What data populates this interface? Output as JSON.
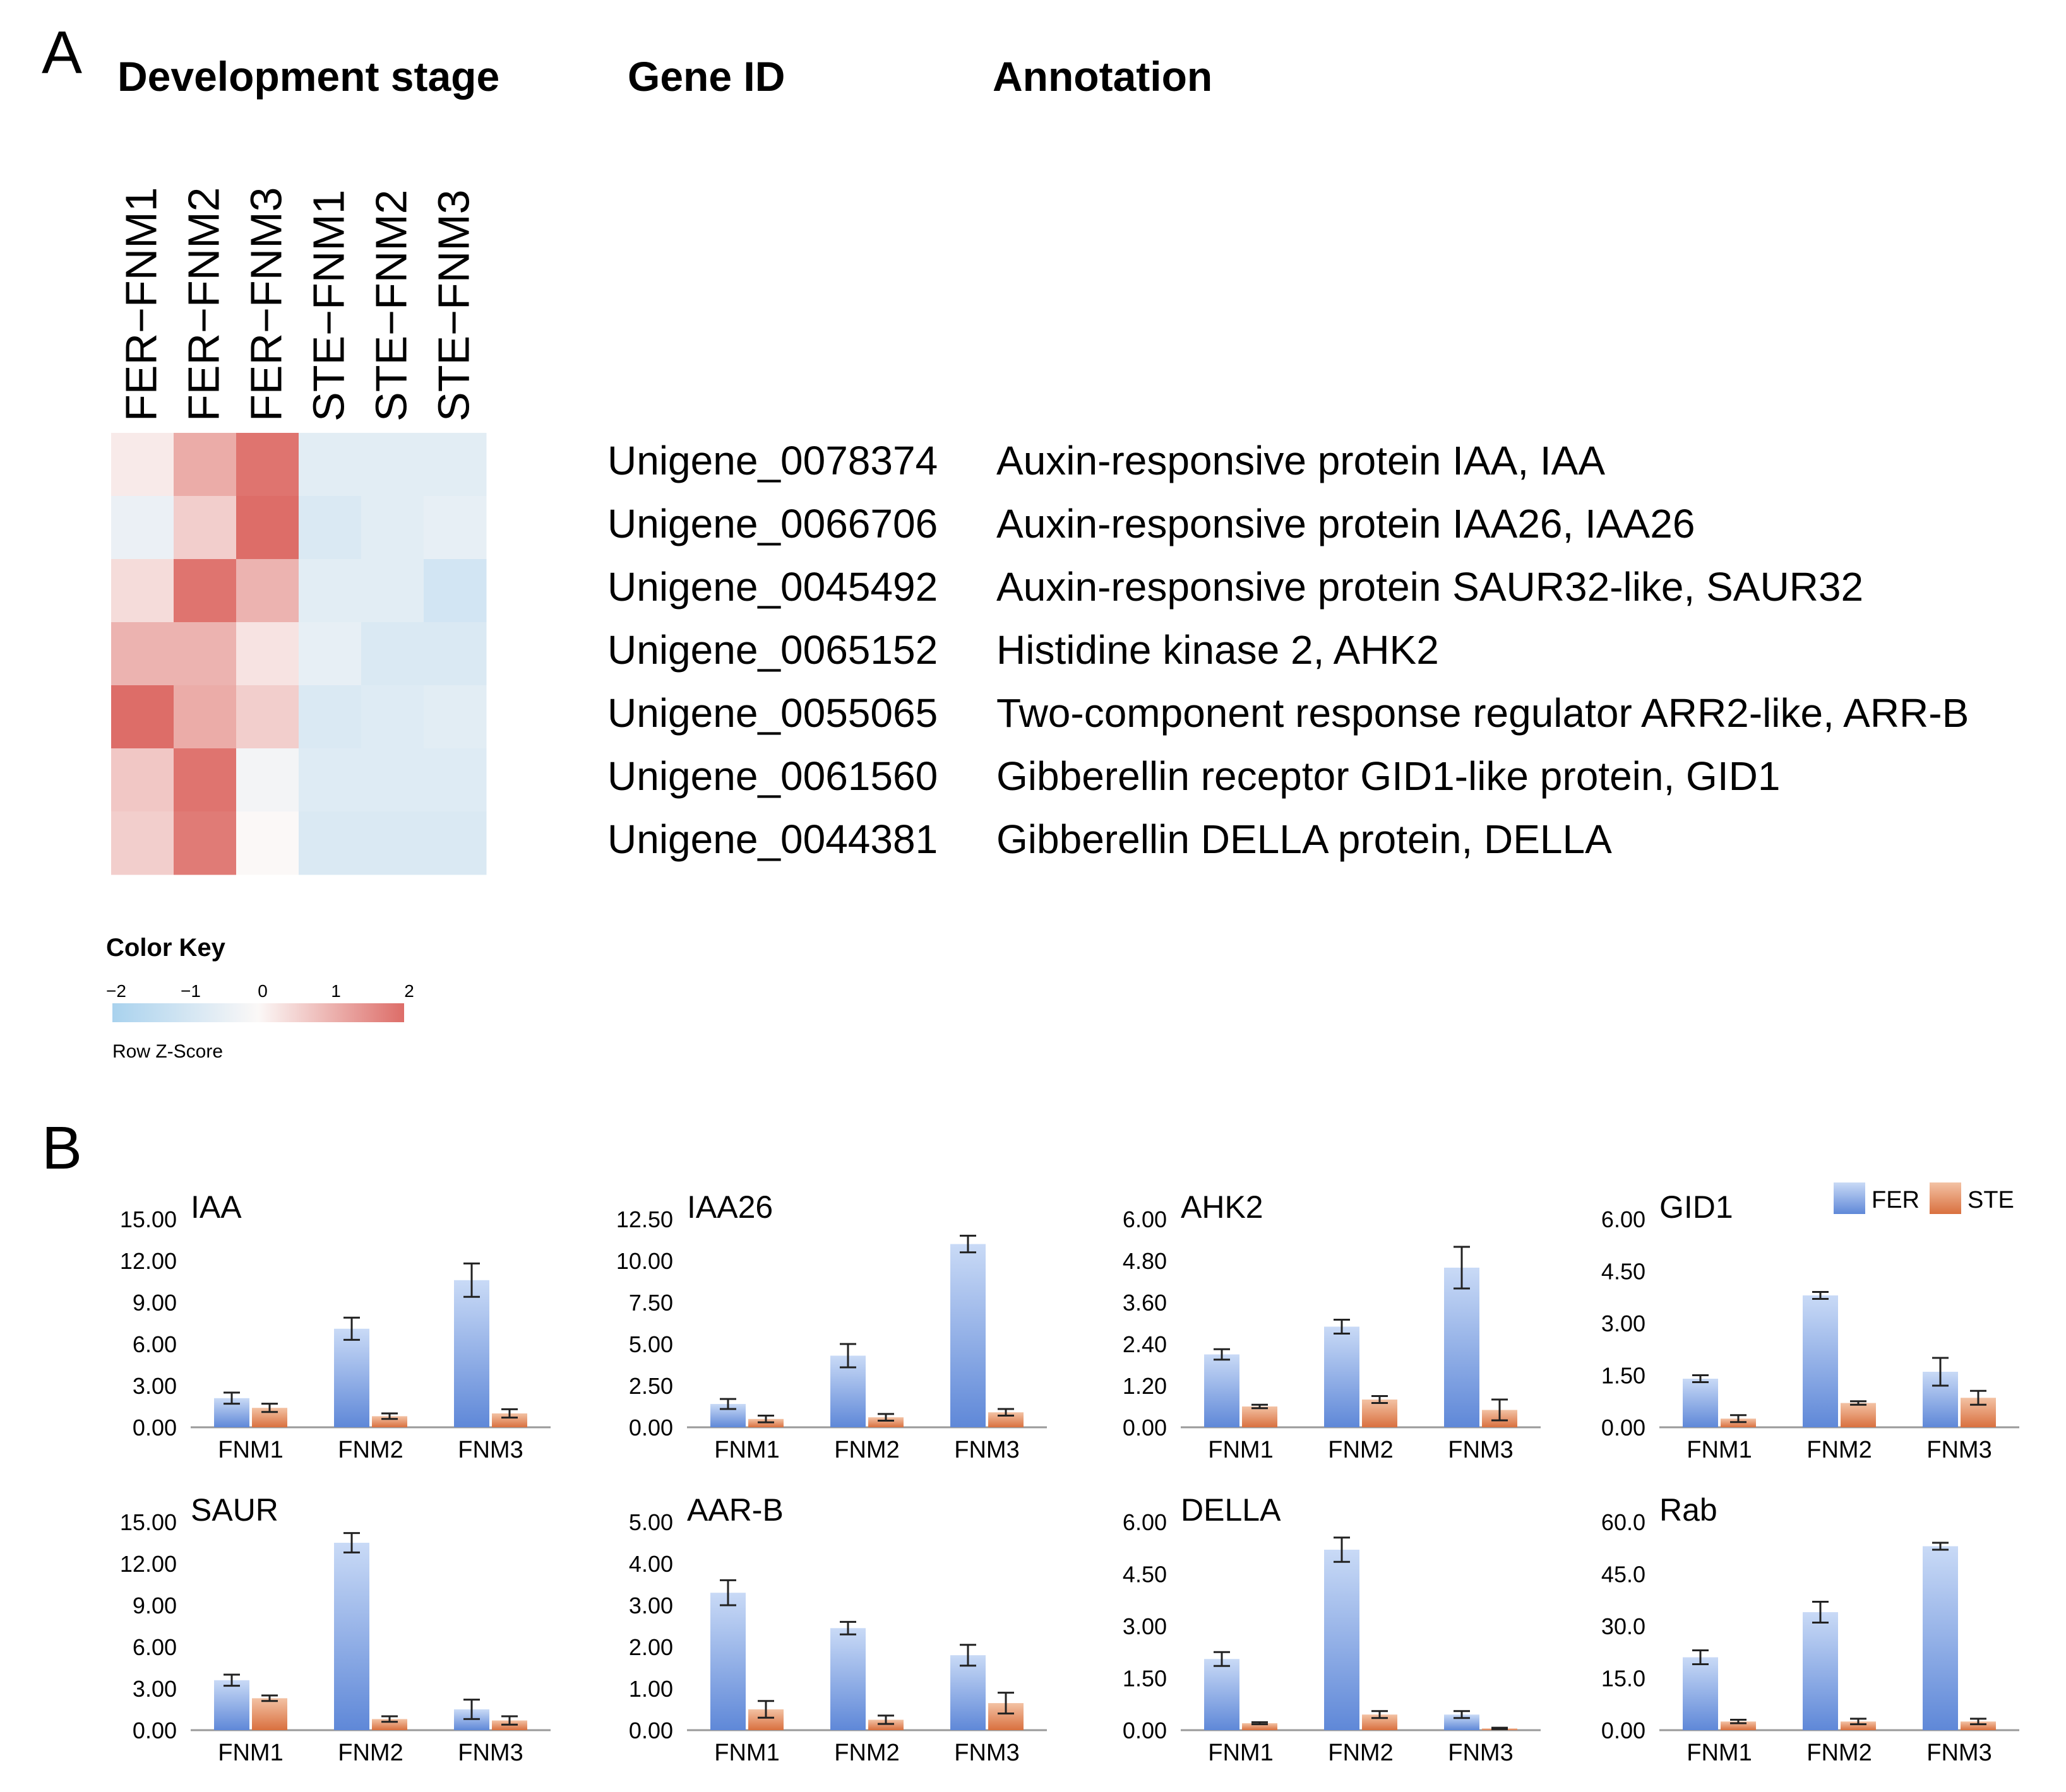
{
  "panel_a": {
    "letter": "A",
    "headers": {
      "stage": "Development stage",
      "gene_id": "Gene ID",
      "annotation": "Annotation"
    },
    "color_key": {
      "title": "Color Key",
      "subtitle": "Row Z-Score",
      "ticks": [
        "−2",
        "−1",
        "0",
        "1",
        "2"
      ],
      "low_color": "#a9d2ee",
      "mid_color": "#fbf8f7",
      "high_color": "#dd6d68"
    },
    "genes": [
      {
        "id": "Unigene_0078374",
        "annotation": "Auxin-responsive protein IAA, IAA"
      },
      {
        "id": "Unigene_0066706",
        "annotation": "Auxin-responsive protein IAA26, IAA26"
      },
      {
        "id": "Unigene_0045492",
        "annotation": "Auxin-responsive protein SAUR32-like, SAUR32"
      },
      {
        "id": "Unigene_0065152",
        "annotation": "Histidine kinase 2, AHK2"
      },
      {
        "id": "Unigene_0055065",
        "annotation": "Two-component response regulator ARR2-like, ARR-B"
      },
      {
        "id": "Unigene_0061560",
        "annotation": "Gibberellin receptor GID1-like protein, GID1"
      },
      {
        "id": "Unigene_0044381",
        "annotation": "Gibberellin DELLA protein, DELLA"
      }
    ]
  },
  "panel_b": {
    "letter": "B",
    "colors": {
      "FER": "#6d95e0",
      "STE": "#e08456"
    }
  },
  "chart_data": [
    {
      "type": "heatmap",
      "title": "",
      "columns": [
        "FER−FNM1",
        "FER−FNM2",
        "FER−FNM3",
        "STE−FNM1",
        "STE−FNM2",
        "STE−FNM3"
      ],
      "rows": [
        "Unigene_0078374",
        "Unigene_0066706",
        "Unigene_0045492",
        "Unigene_0065152",
        "Unigene_0055065",
        "Unigene_0061560",
        "Unigene_0044381"
      ],
      "values": [
        [
          0.2,
          1.1,
          1.9,
          -0.6,
          -0.6,
          -0.6
        ],
        [
          -0.4,
          0.6,
          2.0,
          -0.8,
          -0.6,
          -0.5
        ],
        [
          0.4,
          1.9,
          1.0,
          -0.6,
          -0.6,
          -1.0
        ],
        [
          1.0,
          1.0,
          0.3,
          -0.5,
          -0.8,
          -0.8
        ],
        [
          2.0,
          1.1,
          0.6,
          -0.8,
          -0.7,
          -0.6
        ],
        [
          0.7,
          1.9,
          -0.2,
          -0.7,
          -0.7,
          -0.7
        ],
        [
          0.6,
          1.8,
          0.0,
          -0.8,
          -0.8,
          -0.8
        ]
      ],
      "color_range": [
        -2,
        2
      ],
      "legend": "Row Z-Score"
    },
    {
      "type": "bar",
      "title": "IAA",
      "categories": [
        "FNM1",
        "FNM2",
        "FNM3"
      ],
      "ylim": [
        0,
        15
      ],
      "yticks": [
        "0.00",
        "3.00",
        "6.00",
        "9.00",
        "12.00",
        "15.00"
      ],
      "series": [
        {
          "name": "FER",
          "values": [
            2.1,
            7.1,
            10.6
          ],
          "errors": [
            0.4,
            0.8,
            1.2
          ]
        },
        {
          "name": "STE",
          "values": [
            1.4,
            0.8,
            1.0
          ],
          "errors": [
            0.3,
            0.2,
            0.3
          ]
        }
      ]
    },
    {
      "type": "bar",
      "title": "IAA26",
      "categories": [
        "FNM1",
        "FNM2",
        "FNM3"
      ],
      "ylim": [
        0,
        12.5
      ],
      "yticks": [
        "0.00",
        "2.50",
        "5.00",
        "7.50",
        "10.00",
        "12.50"
      ],
      "series": [
        {
          "name": "FER",
          "values": [
            1.4,
            4.3,
            11.0
          ],
          "errors": [
            0.3,
            0.7,
            0.5
          ]
        },
        {
          "name": "STE",
          "values": [
            0.5,
            0.6,
            0.9
          ],
          "errors": [
            0.2,
            0.2,
            0.2
          ]
        }
      ]
    },
    {
      "type": "bar",
      "title": "AHK2",
      "categories": [
        "FNM1",
        "FNM2",
        "FNM3"
      ],
      "ylim": [
        0,
        6
      ],
      "yticks": [
        "0.00",
        "1.20",
        "2.40",
        "3.60",
        "4.80",
        "6.00"
      ],
      "series": [
        {
          "name": "FER",
          "values": [
            2.1,
            2.9,
            4.6
          ],
          "errors": [
            0.15,
            0.2,
            0.6
          ]
        },
        {
          "name": "STE",
          "values": [
            0.6,
            0.8,
            0.5
          ],
          "errors": [
            0.05,
            0.1,
            0.3
          ]
        }
      ]
    },
    {
      "type": "bar",
      "title": "GID1",
      "categories": [
        "FNM1",
        "FNM2",
        "FNM3"
      ],
      "ylim": [
        0,
        6
      ],
      "yticks": [
        "0.00",
        "1.50",
        "3.00",
        "4.50",
        "6.00"
      ],
      "series": [
        {
          "name": "FER",
          "values": [
            1.4,
            3.8,
            1.6
          ],
          "errors": [
            0.1,
            0.1,
            0.4
          ]
        },
        {
          "name": "STE",
          "values": [
            0.25,
            0.7,
            0.85
          ],
          "errors": [
            0.1,
            0.05,
            0.2
          ]
        }
      ],
      "legend": [
        "FER",
        "STE"
      ]
    },
    {
      "type": "bar",
      "title": "SAUR",
      "categories": [
        "FNM1",
        "FNM2",
        "FNM3"
      ],
      "ylim": [
        0,
        15
      ],
      "yticks": [
        "0.00",
        "3.00",
        "6.00",
        "9.00",
        "12.00",
        "15.00"
      ],
      "series": [
        {
          "name": "FER",
          "values": [
            3.6,
            13.5,
            1.5
          ],
          "errors": [
            0.4,
            0.7,
            0.7
          ]
        },
        {
          "name": "STE",
          "values": [
            2.3,
            0.8,
            0.7
          ],
          "errors": [
            0.2,
            0.2,
            0.3
          ]
        }
      ]
    },
    {
      "type": "bar",
      "title": "AAR-B",
      "categories": [
        "FNM1",
        "FNM2",
        "FNM3"
      ],
      "ylim": [
        0,
        5
      ],
      "yticks": [
        "0.00",
        "1.00",
        "2.00",
        "3.00",
        "4.00",
        "5.00"
      ],
      "series": [
        {
          "name": "FER",
          "values": [
            3.3,
            2.45,
            1.8
          ],
          "errors": [
            0.3,
            0.15,
            0.25
          ]
        },
        {
          "name": "STE",
          "values": [
            0.5,
            0.25,
            0.65
          ],
          "errors": [
            0.2,
            0.1,
            0.25
          ]
        }
      ]
    },
    {
      "type": "bar",
      "title": "DELLA",
      "categories": [
        "FNM1",
        "FNM2",
        "FNM3"
      ],
      "ylim": [
        0,
        6
      ],
      "yticks": [
        "0.00",
        "1.50",
        "3.00",
        "4.50",
        "6.00"
      ],
      "series": [
        {
          "name": "FER",
          "values": [
            2.05,
            5.2,
            0.45
          ],
          "errors": [
            0.2,
            0.35,
            0.1
          ]
        },
        {
          "name": "STE",
          "values": [
            0.2,
            0.45,
            0.05
          ],
          "errors": [
            0.03,
            0.1,
            0.02
          ]
        }
      ]
    },
    {
      "type": "bar",
      "title": "Rab",
      "categories": [
        "FNM1",
        "FNM2",
        "FNM3"
      ],
      "ylim": [
        0,
        60
      ],
      "yticks": [
        "0.00",
        "15.0",
        "30.0",
        "45.0",
        "60.0"
      ],
      "series": [
        {
          "name": "FER",
          "values": [
            21.0,
            34.0,
            53.0
          ],
          "errors": [
            2.0,
            3.0,
            1.0
          ]
        },
        {
          "name": "STE",
          "values": [
            2.5,
            2.5,
            2.5
          ],
          "errors": [
            0.5,
            0.8,
            0.8
          ]
        }
      ]
    }
  ]
}
